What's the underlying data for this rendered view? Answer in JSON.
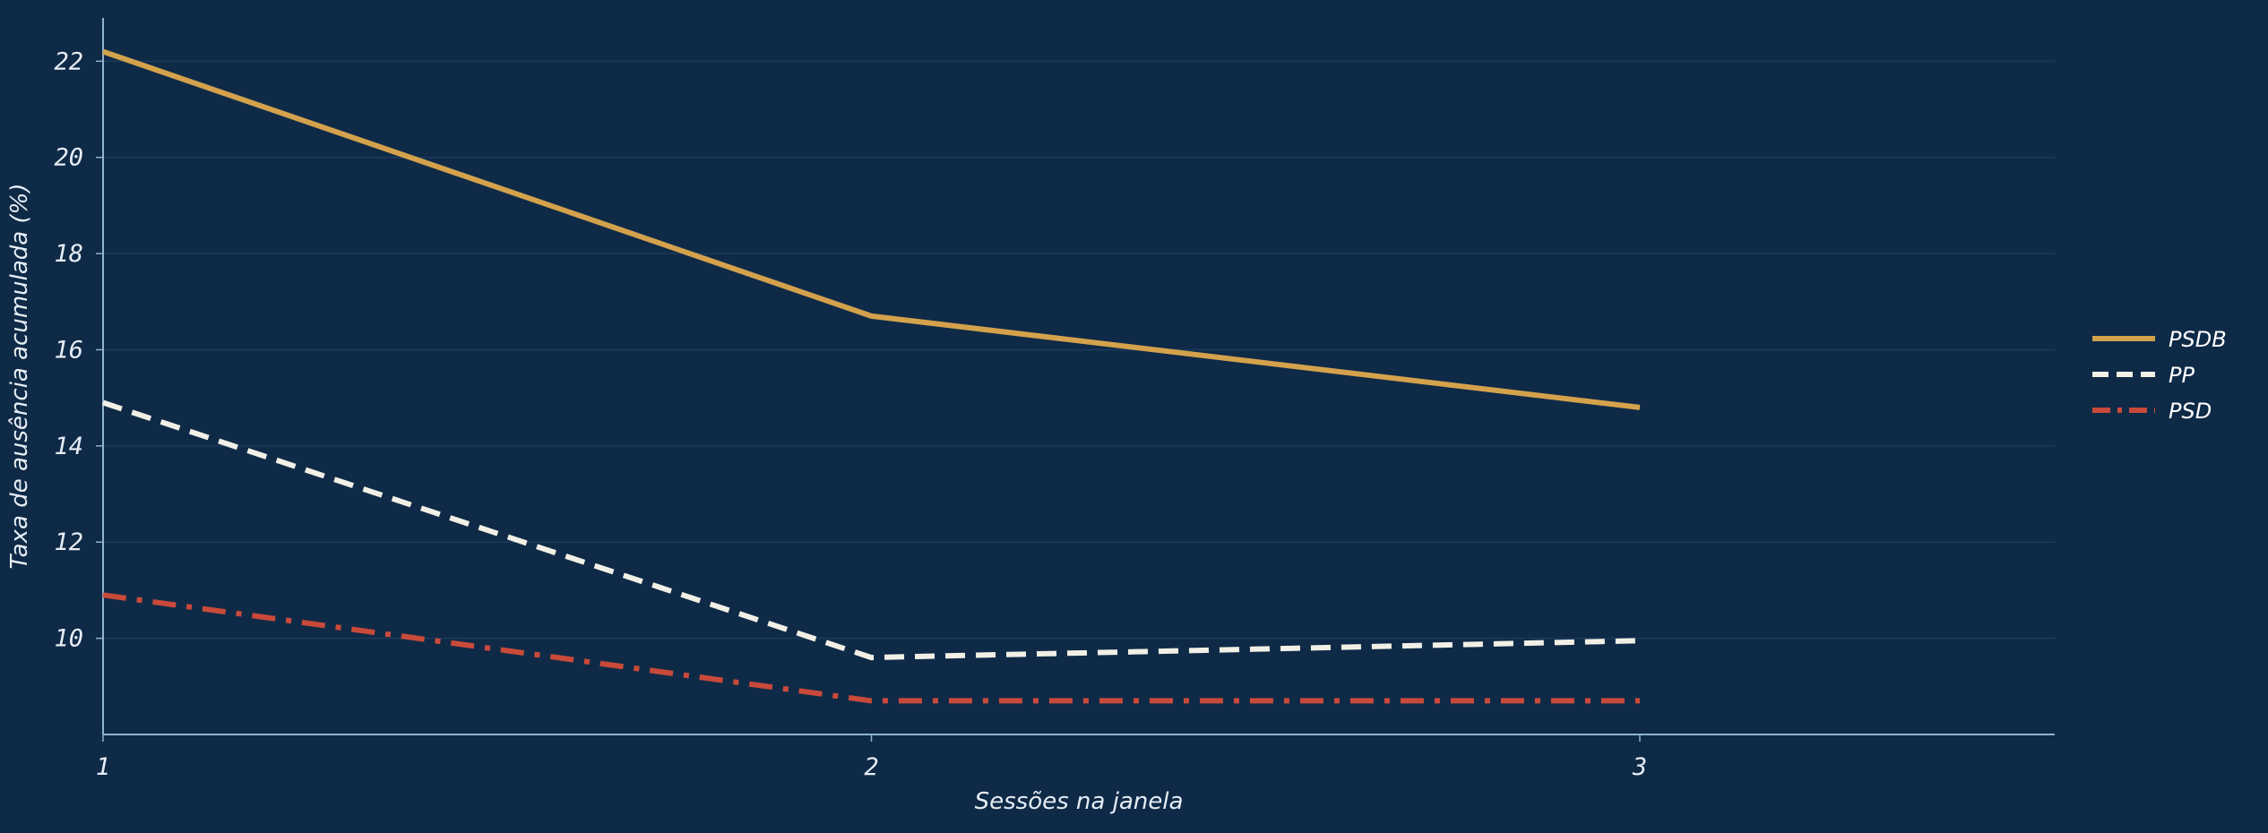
{
  "chart_data": {
    "type": "line",
    "xlabel": "Sessões na janela",
    "ylabel": "Taxa de ausência acumulada (%)",
    "x": [
      1,
      2,
      3
    ],
    "xlim": [
      1,
      3.54
    ],
    "ylim": [
      8,
      22.9
    ],
    "xticks": [
      "1",
      "2",
      "3"
    ],
    "yticks": [
      "10",
      "12",
      "14",
      "16",
      "18",
      "20",
      "22"
    ],
    "grid": "horizontal",
    "legend_position": "right",
    "colors": {
      "background": "#0f2a47",
      "axis": "#8fb3d1",
      "grid": "#1b3a5c",
      "text": "#e6edf5"
    },
    "series": [
      {
        "name": "PSDB",
        "values": [
          22.2,
          16.7,
          14.8
        ],
        "color": "#d4a24c",
        "style": "solid"
      },
      {
        "name": "PP",
        "values": [
          14.9,
          9.6,
          9.95
        ],
        "color": "#f2f0e6",
        "style": "dashed"
      },
      {
        "name": "PSD",
        "values": [
          10.9,
          8.7,
          8.7
        ],
        "color": "#c94a3a",
        "style": "dashdot"
      }
    ]
  }
}
